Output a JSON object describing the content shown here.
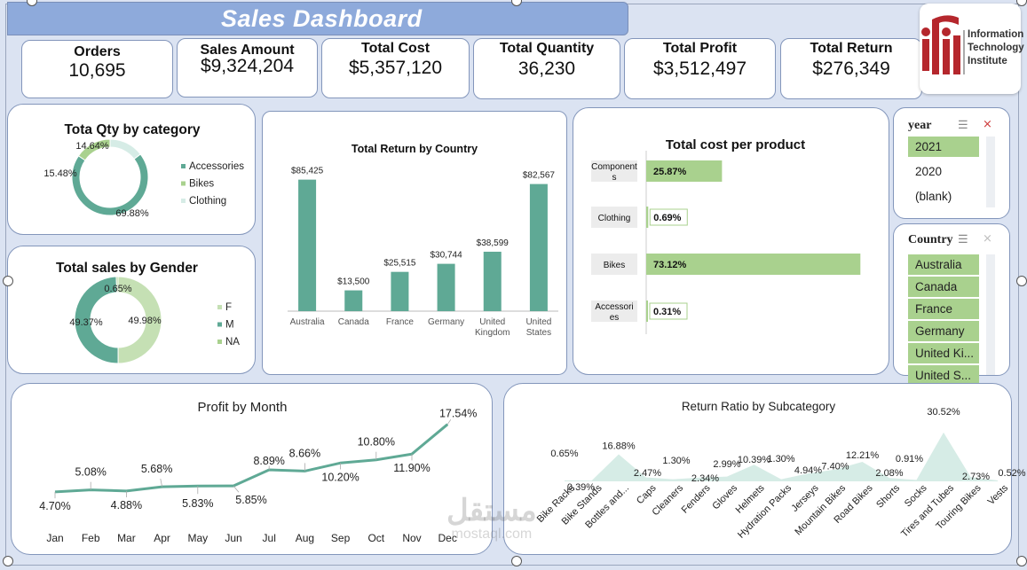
{
  "title": "Sales Dashboard",
  "kpis": [
    {
      "label": "Orders",
      "value": "10,695"
    },
    {
      "label": "Sales Amount",
      "value": "$9,324,204"
    },
    {
      "label": "Total Cost",
      "value": "$5,357,120"
    },
    {
      "label": "Total Quantity",
      "value": "36,230"
    },
    {
      "label": "Total Profit",
      "value": "$3,512,497"
    },
    {
      "label": "Total Return",
      "value": "$276,349"
    }
  ],
  "logo": {
    "line1": "Information",
    "line2": "Technology",
    "line3": "Institute"
  },
  "watermark": {
    "arabic": "مستقل",
    "latin": "mostaql.com"
  },
  "slicers": {
    "year": {
      "title": "year",
      "items": [
        {
          "label": "2021",
          "selected": true
        },
        {
          "label": "2020",
          "selected": false
        },
        {
          "label": "(blank)",
          "selected": false
        }
      ]
    },
    "country": {
      "title": "Country",
      "items": [
        {
          "label": "Australia",
          "selected": true
        },
        {
          "label": "Canada",
          "selected": true
        },
        {
          "label": "France",
          "selected": true
        },
        {
          "label": "Germany",
          "selected": true
        },
        {
          "label": "United Ki...",
          "selected": true
        },
        {
          "label": "United S...",
          "selected": true
        }
      ]
    }
  },
  "colors": {
    "teal": "#5fa995",
    "lightgreen": "#a9d18e",
    "palegreen": "#c5e0b4",
    "paleteal": "#d6ece6"
  },
  "chart_data": [
    {
      "id": "qty_by_category",
      "type": "pie",
      "title": "Tota Qty by category",
      "categories": [
        "Accessories",
        "Bikes",
        "Clothing"
      ],
      "values": [
        69.88,
        15.48,
        14.64
      ],
      "labels": [
        "69.88%",
        "15.48%",
        "14.64%"
      ]
    },
    {
      "id": "sales_by_gender",
      "type": "pie",
      "title": "Total sales by Gender",
      "categories": [
        "F",
        "M",
        "NA"
      ],
      "values": [
        49.98,
        49.37,
        0.65
      ],
      "labels": [
        "49.98%",
        "49.37%",
        "0.65%"
      ]
    },
    {
      "id": "return_by_country",
      "type": "bar",
      "title": "Total Return by Country",
      "categories": [
        "Australia",
        "Canada",
        "France",
        "Germany",
        "United Kingdom",
        "United States"
      ],
      "values": [
        85425,
        13500,
        25515,
        30744,
        38599,
        82567
      ],
      "labels": [
        "$85,425",
        "$13,500",
        "$25,515",
        "$30,744",
        "$38,599",
        "$82,567"
      ],
      "ylim": [
        0,
        95000
      ]
    },
    {
      "id": "cost_per_product",
      "type": "bar",
      "orientation": "horizontal",
      "title": "Total cost per product",
      "categories": [
        "Components",
        "Clothing",
        "Bikes",
        "Accessories"
      ],
      "values": [
        25.87,
        0.69,
        73.12,
        0.31
      ],
      "labels": [
        "25.87%",
        "0.69%",
        "73.12%",
        "0.31%"
      ],
      "xlim": [
        0,
        100
      ]
    },
    {
      "id": "profit_by_month",
      "type": "line",
      "title": "Profit by Month",
      "categories": [
        "Jan",
        "Feb",
        "Mar",
        "Apr",
        "May",
        "Jun",
        "Jul",
        "Aug",
        "Sep",
        "Oct",
        "Nov",
        "Dec"
      ],
      "values": [
        4.7,
        5.08,
        4.88,
        5.68,
        5.83,
        5.85,
        8.89,
        8.66,
        10.2,
        10.8,
        11.9,
        17.54
      ],
      "labels": [
        "4.70%",
        "5.08%",
        "4.88%",
        "5.68%",
        "5.83%",
        "5.85%",
        "8.89%",
        "8.66%",
        "10.20%",
        "10.80%",
        "11.90%",
        "17.54%"
      ]
    },
    {
      "id": "return_ratio_by_subcategory",
      "type": "area",
      "title": "Return Ratio by Subcategory",
      "categories": [
        "Bike Racks",
        "Bike Stands",
        "Bottles and...",
        "Caps",
        "Cleaners",
        "Fenders",
        "Gloves",
        "Helmets",
        "Hydration Packs",
        "Jerseys",
        "Mountain Bikes",
        "Road Bikes",
        "Shorts",
        "Socks",
        "Tires and Tubes",
        "Touring Bikes",
        "Vests"
      ],
      "values": [
        0.65,
        0.39,
        16.88,
        2.47,
        1.3,
        2.34,
        2.99,
        10.39,
        1.3,
        4.94,
        7.4,
        12.21,
        2.08,
        0.91,
        30.52,
        2.73,
        0.52
      ],
      "labels": [
        "0.65%",
        "0.39%",
        "16.88%",
        "2.47%",
        "1.30%",
        "2.34%",
        "2.99%",
        "10.39%",
        "1.30%",
        "4.94%",
        "7.40%",
        "12.21%",
        "2.08%",
        "0.91%",
        "30.52%",
        "2.73%",
        "0.52%"
      ]
    }
  ]
}
